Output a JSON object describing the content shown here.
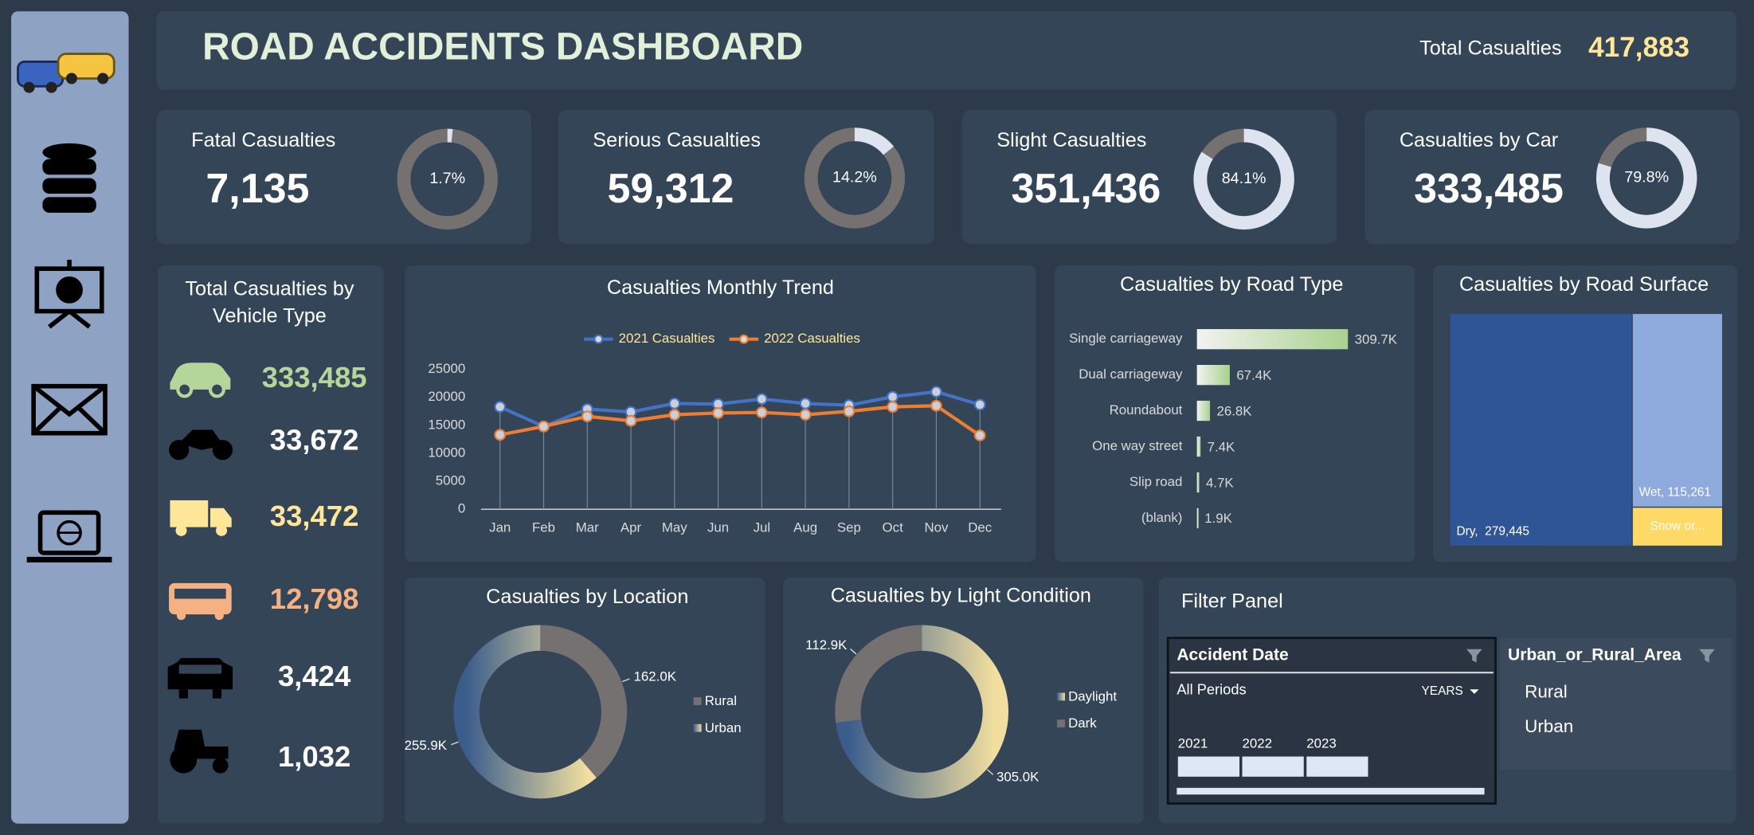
{
  "header": {
    "title": "ROAD ACCIDENTS DASHBOARD",
    "total_label": "Total Casualties",
    "total_value": "417,883"
  },
  "kpis": [
    {
      "title": "Fatal Casualties",
      "value": "7,135",
      "percent": 1.7,
      "percent_label": "1.7%"
    },
    {
      "title": "Serious Casualties",
      "value": "59,312",
      "percent": 14.2,
      "percent_label": "14.2%"
    },
    {
      "title": "Slight Casualties",
      "value": "351,436",
      "percent": 84.1,
      "percent_label": "84.1%"
    },
    {
      "title": "Casualties by Car",
      "value": "333,485",
      "percent": 79.8,
      "percent_label": "79.8%"
    }
  ],
  "vehicle_panel": {
    "title_lines": [
      "Total Casualties by",
      "Vehicle Type"
    ],
    "items": [
      {
        "value": "333,485",
        "color": "#b5d69b"
      },
      {
        "value": "33,672",
        "color": "#ffffff"
      },
      {
        "value": "33,472",
        "color": "#ffe699"
      },
      {
        "value": "12,798",
        "color": "#f4b183"
      },
      {
        "value": "3,424",
        "color": "#ffffff"
      },
      {
        "value": "1,032",
        "color": "#ffffff"
      }
    ]
  },
  "chart_data": [
    {
      "type": "line",
      "title": "Casualties Monthly Trend",
      "categories": [
        "Jan",
        "Feb",
        "Mar",
        "Apr",
        "May",
        "Jun",
        "Jul",
        "Aug",
        "Sep",
        "Oct",
        "Nov",
        "Dec"
      ],
      "series": [
        {
          "name": "2021 Casualties",
          "color": "#4472c4",
          "values": [
            18300,
            14800,
            17900,
            17400,
            18900,
            18800,
            19700,
            18900,
            18600,
            20100,
            21000,
            18700
          ]
        },
        {
          "name": "2022 Casualties",
          "color": "#ed7d31",
          "values": [
            13300,
            14800,
            16600,
            15800,
            16900,
            17200,
            17300,
            16900,
            17500,
            18300,
            18500,
            13200
          ]
        }
      ],
      "ylim": [
        0,
        25000
      ],
      "yticks": [
        0,
        5000,
        10000,
        15000,
        20000,
        25000
      ],
      "legend": "top"
    },
    {
      "type": "hbar",
      "title": "Casualties by Road Type",
      "categories": [
        "Single carriageway",
        "Dual carriageway",
        "Roundabout",
        "One way street",
        "Slip road",
        "(blank)"
      ],
      "values": [
        309700,
        67400,
        26800,
        7400,
        4700,
        1900
      ],
      "value_labels": [
        "309.7K",
        "67.4K",
        "26.8K",
        "7.4K",
        "4.7K",
        "1.9K"
      ],
      "color": [
        "#f2f2f2",
        "#a9d18e"
      ]
    },
    {
      "type": "treemap",
      "title": "Casualties by Road Surface",
      "values": [
        279445,
        115261,
        23177
      ],
      "value_labels": [
        "Dry,  279,445",
        "Wet, 115,261",
        "Snow or..."
      ],
      "colors": [
        "#2f5597",
        "#8faadc",
        "#ffd966"
      ]
    },
    {
      "type": "donut",
      "title": "Casualties by Location",
      "categories": [
        "Rural",
        "Urban"
      ],
      "values": [
        162000,
        255900
      ],
      "value_labels": [
        "162.0K",
        "255.9K"
      ],
      "colors": [
        "#767171",
        [
          "#3b5d8c",
          "#f2dfa0"
        ]
      ],
      "legend": "right"
    },
    {
      "type": "donut",
      "title": "Casualties by Light Condition",
      "categories": [
        "Daylight",
        "Dark"
      ],
      "values": [
        305000,
        112900
      ],
      "value_labels": [
        "305.0K",
        "112.9K"
      ],
      "colors": [
        [
          "#3b5d8c",
          "#f2dfa0"
        ],
        "#767171"
      ],
      "legend": "right"
    }
  ],
  "filter_panel": {
    "title": "Filter Panel",
    "date_slicer": {
      "title": "Accident Date",
      "period": "All Periods",
      "unit": "YEARS",
      "years": [
        "2021",
        "2022",
        "2023"
      ]
    },
    "area_slicer": {
      "title": "Urban_or_Rural_Area",
      "items": [
        "Rural",
        "Urban"
      ]
    }
  }
}
